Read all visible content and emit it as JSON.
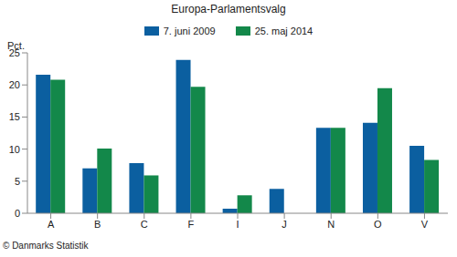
{
  "chart_data": {
    "type": "bar",
    "title": "Europa-Parlamentsvalg",
    "y_label": "Pct.",
    "source": "© Danmarks Statistik",
    "categories": [
      "A",
      "B",
      "C",
      "F",
      "I",
      "J",
      "N",
      "O",
      "V"
    ],
    "series": [
      {
        "name": "7. juni 2009",
        "color": "#0b5fa0",
        "values": [
          21.6,
          7.0,
          7.8,
          23.9,
          0.7,
          3.8,
          13.3,
          14.1,
          10.5
        ]
      },
      {
        "name": "25. maj 2014",
        "color": "#13884a",
        "values": [
          20.8,
          10.1,
          5.9,
          19.7,
          2.8,
          null,
          13.3,
          19.5,
          8.3
        ]
      }
    ],
    "ylim": [
      0,
      25
    ],
    "yticks": [
      0,
      5,
      10,
      15,
      20,
      25
    ],
    "grid": false,
    "legend": "top"
  }
}
